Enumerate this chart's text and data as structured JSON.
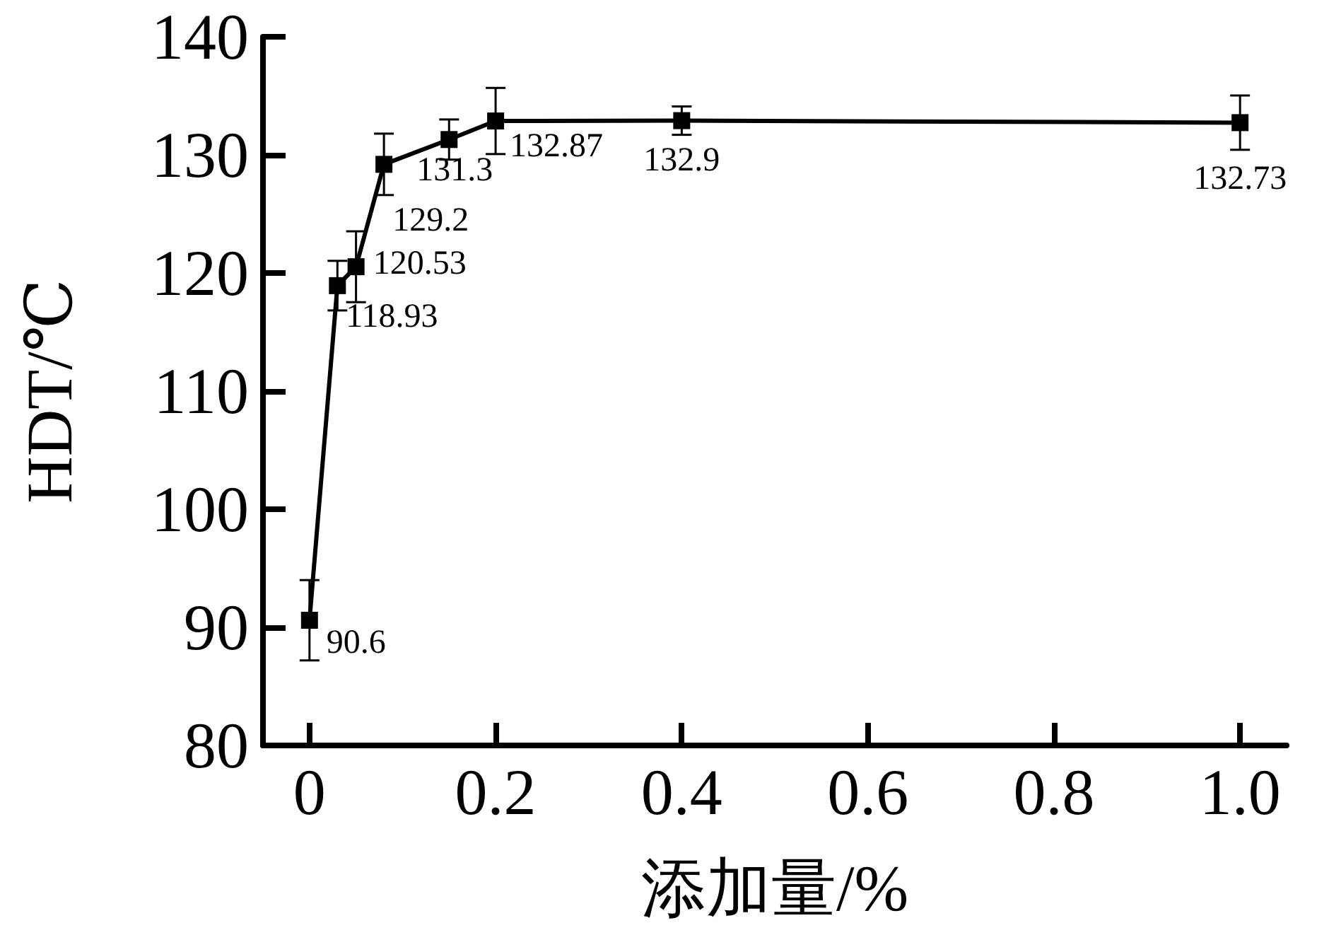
{
  "chart_data": {
    "type": "line",
    "xlabel": "添加量/%",
    "ylabel": "HDT/℃",
    "x": [
      0,
      0.03,
      0.05,
      0.08,
      0.15,
      0.2,
      0.4,
      1.0
    ],
    "values": [
      90.6,
      118.93,
      120.53,
      129.2,
      131.3,
      132.87,
      132.9,
      132.73
    ],
    "errors": [
      3.4,
      2.1,
      3,
      2.6,
      1.7,
      2.8,
      1.2,
      2.3
    ],
    "color": "#000000",
    "marker": "square",
    "line_style": "solid",
    "data_labels": true,
    "grid": false,
    "xlim": [
      -0.05,
      1.05
    ],
    "xticks": [
      0,
      {
        "value": 0.2,
        "label": "0.2"
      },
      {
        "value": 0.4,
        "label": "0.4"
      },
      {
        "value": 0.6,
        "label": "0.6"
      },
      {
        "value": 0.8,
        "label": "0.8"
      },
      {
        "value": 1.0,
        "label": "1.0"
      }
    ],
    "ylim": [
      80,
      140
    ],
    "yticks": [
      80,
      90,
      100,
      110,
      120,
      130,
      140
    ]
  }
}
